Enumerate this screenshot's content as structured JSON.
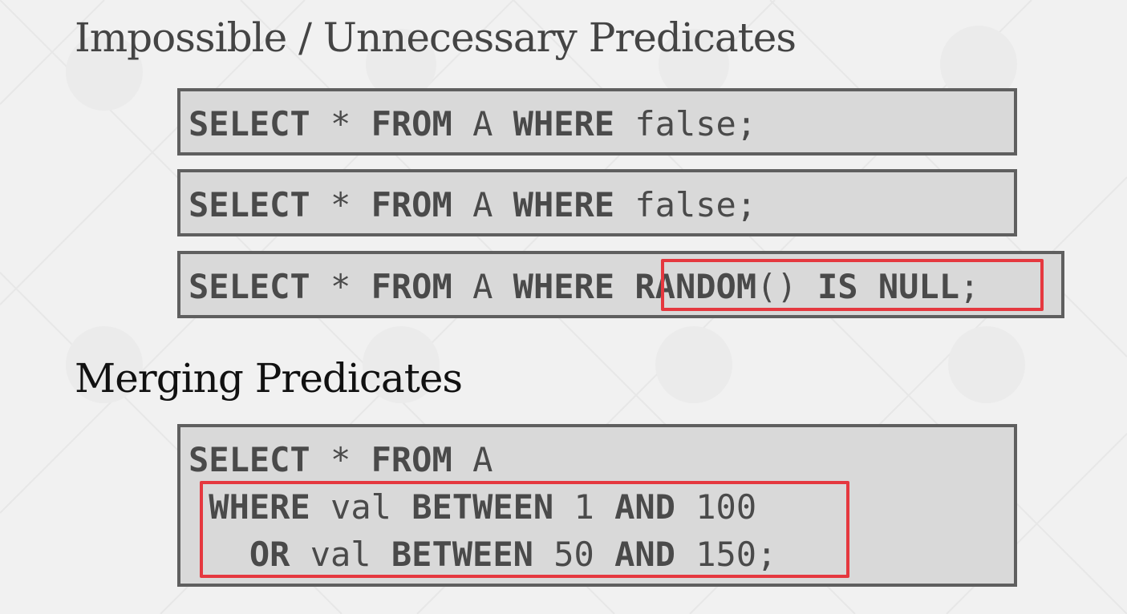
{
  "slide": {
    "heading_impossible": "Impossible / Unnecessary Predicates",
    "heading_merging": "Merging Predicates"
  },
  "queries": {
    "q1": {
      "select": "SELECT",
      "star": "*",
      "from": "FROM",
      "table": "A",
      "where": "WHERE",
      "predicate": "false;"
    },
    "q2": {
      "select": "SELECT",
      "star": "*",
      "from": "FROM",
      "table": "A",
      "where": "WHERE",
      "predicate": "false;"
    },
    "q3": {
      "select": "SELECT",
      "star": "*",
      "from": "FROM",
      "table": "A",
      "where": "WHERE",
      "func": "RANDOM",
      "parens": "()",
      "is": "IS",
      "null": "NULL",
      "semicolon": ";"
    },
    "q4": {
      "select": "SELECT",
      "star": "*",
      "from": "FROM",
      "table": "A",
      "where": "WHERE",
      "col": "val",
      "between": "BETWEEN",
      "low1": "1",
      "and": "AND",
      "high1": "100",
      "or": "OR",
      "low2": "50",
      "high2": "150;"
    }
  },
  "colors": {
    "background": "#f1f1f1",
    "code_box_fill": "#d9d9d9",
    "code_box_border": "#5f5f5f",
    "highlight": "#e5383f"
  }
}
